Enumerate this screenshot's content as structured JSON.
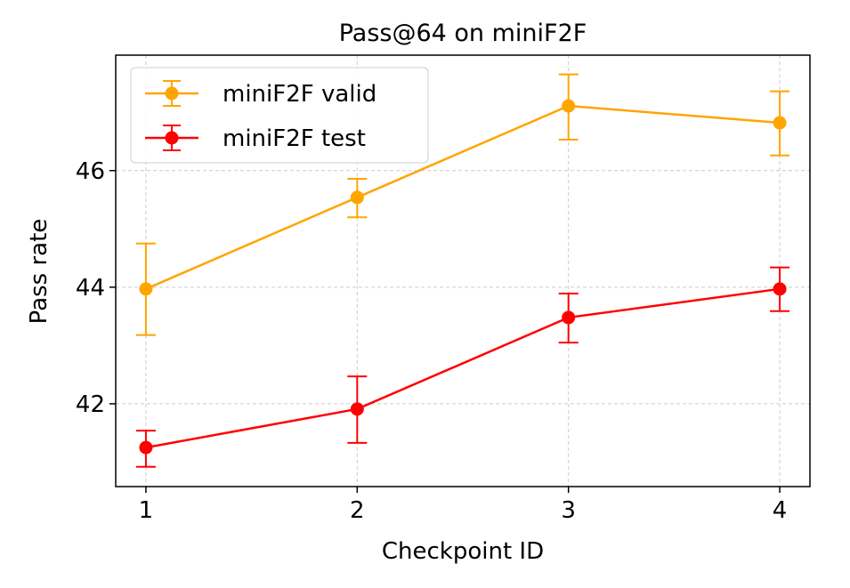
{
  "chart_data": {
    "type": "line",
    "title": "Pass@64 on miniF2F",
    "xlabel": "Checkpoint ID",
    "ylabel": "Pass rate",
    "x": [
      1,
      2,
      3,
      4
    ],
    "xticks": [
      "1",
      "2",
      "3",
      "4"
    ],
    "yticks": [
      "42",
      "44",
      "46"
    ],
    "ytick_values": [
      42,
      44,
      46
    ],
    "xlim": [
      0.857,
      4.143
    ],
    "ylim": [
      40.58,
      47.98
    ],
    "grid": true,
    "legend_position": "top-left",
    "series": [
      {
        "name": "miniF2F valid",
        "color": "#ffa500",
        "values": [
          43.97,
          45.54,
          47.11,
          46.82
        ],
        "err_low": [
          43.18,
          45.2,
          46.53,
          46.26
        ],
        "err_high": [
          44.75,
          45.86,
          47.65,
          47.36
        ]
      },
      {
        "name": "miniF2F test",
        "color": "#ff0000",
        "values": [
          41.25,
          41.91,
          43.48,
          43.97
        ],
        "err_low": [
          40.92,
          41.33,
          43.05,
          43.59
        ],
        "err_high": [
          41.54,
          42.47,
          43.89,
          44.34
        ]
      }
    ]
  }
}
